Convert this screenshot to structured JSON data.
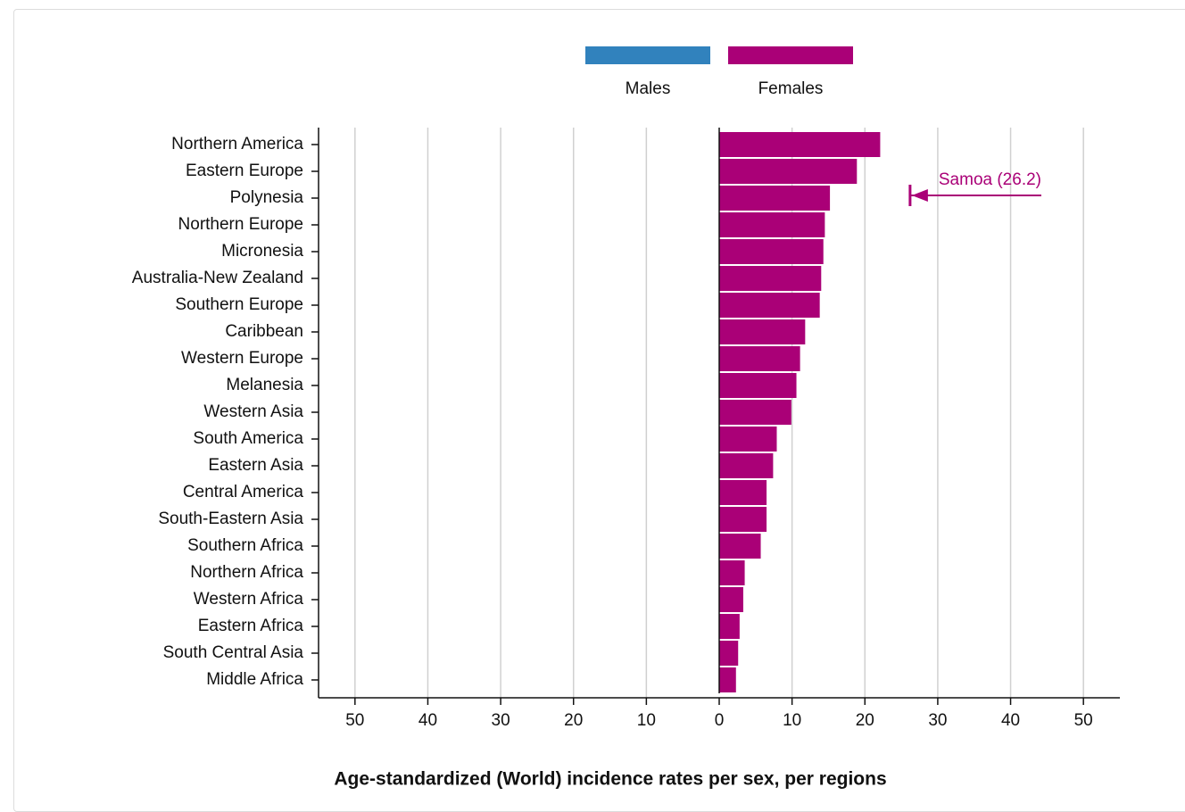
{
  "chart_data": {
    "type": "pyramid",
    "title": "Age-standardized (World) incidence rates per sex, per regions",
    "categories": [
      "Northern America",
      "Eastern Europe",
      "Polynesia",
      "Northern Europe",
      "Micronesia",
      "Australia-New Zealand",
      "Southern Europe",
      "Caribbean",
      "Western Europe",
      "Melanesia",
      "Western Asia",
      "South America",
      "Eastern Asia",
      "Central America",
      "South-Eastern Asia",
      "Southern Africa",
      "Northern Africa",
      "Western Africa",
      "Eastern Africa",
      "South Central Asia",
      "Middle Africa"
    ],
    "series": [
      {
        "name": "Males",
        "color": "#3182bd",
        "values": [
          null,
          null,
          null,
          null,
          null,
          null,
          null,
          null,
          null,
          null,
          null,
          null,
          null,
          null,
          null,
          null,
          null,
          null,
          null,
          null,
          null
        ]
      },
      {
        "name": "Females",
        "color": "#aa0077",
        "values": [
          22.1,
          18.9,
          15.2,
          14.5,
          14.3,
          14.0,
          13.8,
          11.8,
          11.1,
          10.6,
          9.9,
          7.9,
          7.4,
          6.5,
          6.5,
          5.7,
          3.5,
          3.3,
          2.8,
          2.6,
          2.3
        ]
      }
    ],
    "xlim": [
      -55,
      55
    ],
    "xticks": [
      {
        "value": -50,
        "label": "50"
      },
      {
        "value": -40,
        "label": "40"
      },
      {
        "value": -30,
        "label": "30"
      },
      {
        "value": -20,
        "label": "20"
      },
      {
        "value": -10,
        "label": "10"
      },
      0,
      10,
      20,
      30,
      40,
      50
    ],
    "grid": true,
    "annotation": {
      "label": "Samoa (26.2)",
      "x": 26.2
    }
  }
}
